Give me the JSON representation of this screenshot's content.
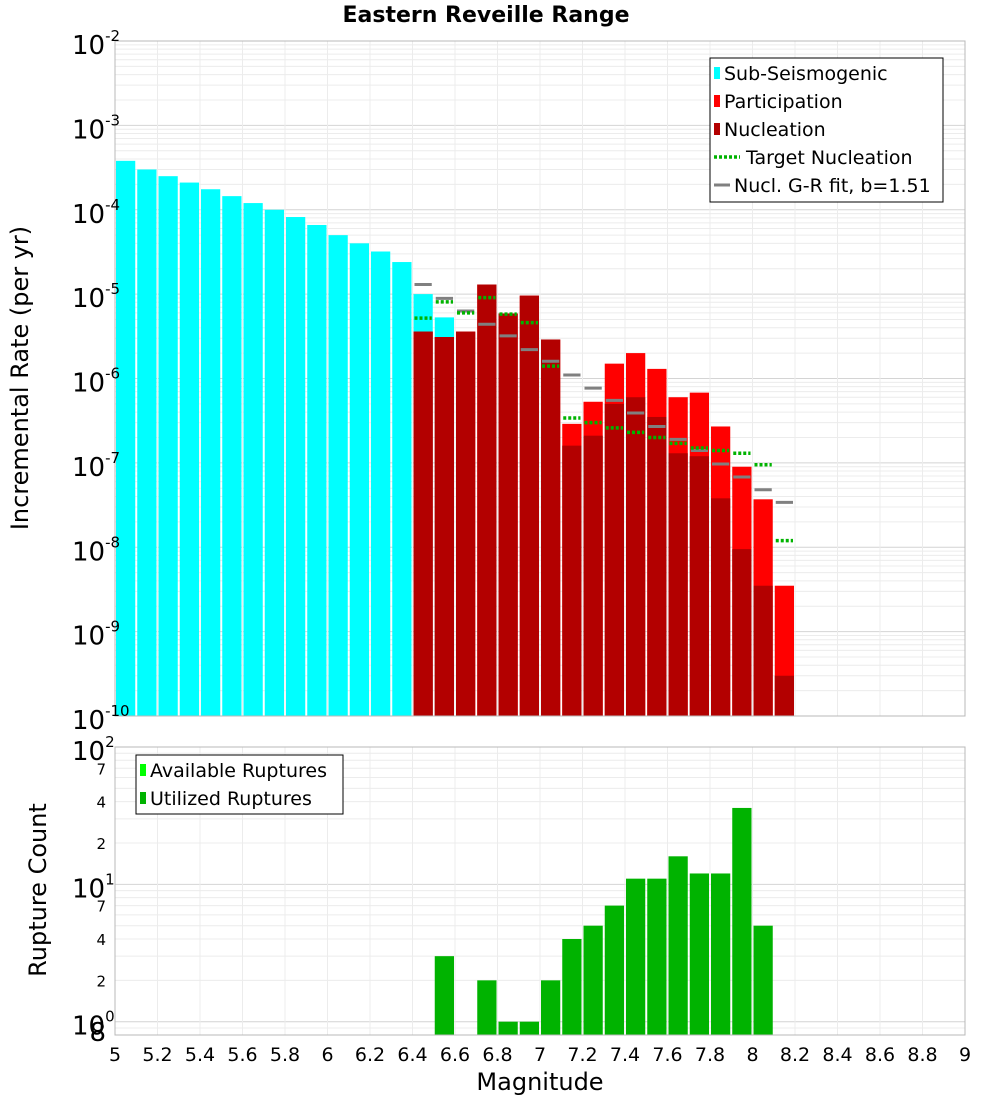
{
  "chart_data": [
    {
      "type": "bar",
      "title": "Eastern Reveille Range",
      "xlabel": "Magnitude",
      "ylabel": "Incremental Rate (per yr)",
      "xlim": [
        5,
        9
      ],
      "ylim": [
        1e-10,
        0.01
      ],
      "yscale": "log",
      "bin_width": 0.1,
      "y_ticks": [
        {
          "base": "10",
          "exp": "-2"
        },
        {
          "base": "10",
          "exp": "-3"
        },
        {
          "base": "10",
          "exp": "-4"
        },
        {
          "base": "10",
          "exp": "-5"
        },
        {
          "base": "10",
          "exp": "-6"
        },
        {
          "base": "10",
          "exp": "-7"
        },
        {
          "base": "10",
          "exp": "-8"
        },
        {
          "base": "10",
          "exp": "-9"
        },
        {
          "base": "10",
          "exp": "-10"
        }
      ],
      "legend": [
        {
          "label": "Sub-Seismogenic",
          "color": "#00ffff",
          "kind": "bar"
        },
        {
          "label": "Participation",
          "color": "#ff0000",
          "kind": "bar"
        },
        {
          "label": "Nucleation",
          "color": "#b30000",
          "kind": "bar"
        },
        {
          "label": "Target Nucleation",
          "color": "#00b300",
          "kind": "dotted"
        },
        {
          "label": "Nucl. G-R fit, b=1.51",
          "color": "#808080",
          "kind": "line"
        }
      ],
      "series": [
        {
          "name": "Sub-Seismogenic",
          "color": "#00ffff",
          "x": [
            5.05,
            5.15,
            5.25,
            5.35,
            5.45,
            5.55,
            5.65,
            5.75,
            5.85,
            5.95,
            6.05,
            6.15,
            6.25,
            6.35,
            6.45,
            6.55
          ],
          "values": [
            0.00038,
            0.0003,
            0.00025,
            0.00021,
            0.000175,
            0.000145,
            0.00012,
            0.0001,
            8.2e-05,
            6.6e-05,
            5e-05,
            4e-05,
            3.2e-05,
            2.4e-05,
            1e-05,
            5.3e-06
          ]
        },
        {
          "name": "Participation",
          "color": "#ff0000",
          "x": [
            6.45,
            6.55,
            6.65,
            6.75,
            6.85,
            6.95,
            7.05,
            7.15,
            7.25,
            7.35,
            7.45,
            7.55,
            7.65,
            7.75,
            7.85,
            7.95,
            8.05,
            8.15
          ],
          "values": [
            3.6e-06,
            3.1e-06,
            3.6e-06,
            1.3e-05,
            5.9e-06,
            9.6e-06,
            2.9e-06,
            2.9e-07,
            5.3e-07,
            1.5e-06,
            2e-06,
            1.3e-06,
            6e-07,
            6.8e-07,
            2.7e-07,
            9e-08,
            3.7e-08,
            3.5e-09
          ]
        },
        {
          "name": "Nucleation",
          "color": "#b30000",
          "x": [
            6.45,
            6.55,
            6.65,
            6.75,
            6.85,
            6.95,
            7.05,
            7.15,
            7.25,
            7.35,
            7.45,
            7.55,
            7.65,
            7.75,
            7.85,
            7.95,
            8.05,
            8.15
          ],
          "values": [
            3.6e-06,
            3.1e-06,
            3.6e-06,
            1.3e-05,
            5.9e-06,
            9.6e-06,
            2.9e-06,
            1.6e-07,
            2.1e-07,
            5e-07,
            6e-07,
            3.5e-07,
            1.3e-07,
            1.2e-07,
            3.8e-08,
            9.5e-09,
            3.5e-09,
            3e-10
          ]
        },
        {
          "name": "Target Nucleation",
          "color": "#00b300",
          "style": "dotted",
          "x": [
            6.45,
            6.55,
            6.65,
            6.75,
            6.85,
            6.95,
            7.05,
            7.15,
            7.25,
            7.35,
            7.45,
            7.55,
            7.65,
            7.75,
            7.85,
            7.95,
            8.05,
            8.15
          ],
          "values": [
            5.2e-06,
            8.1e-06,
            6e-06,
            9.1e-06,
            5.8e-06,
            4.6e-06,
            1.4e-06,
            3.4e-07,
            3e-07,
            2.6e-07,
            2.3e-07,
            2e-07,
            1.7e-07,
            1.5e-07,
            1.4e-07,
            1.3e-07,
            9.5e-08,
            1.2e-08
          ]
        },
        {
          "name": "Nucl. G-R fit, b=1.51",
          "color": "#808080",
          "style": "solid",
          "x": [
            6.45,
            6.55,
            6.65,
            6.75,
            6.85,
            6.95,
            7.05,
            7.15,
            7.25,
            7.35,
            7.45,
            7.55,
            7.65,
            7.75,
            7.85,
            7.95,
            8.05,
            8.15
          ],
          "values": [
            1.3e-05,
            8.9e-06,
            6.3e-06,
            4.4e-06,
            3.2e-06,
            2.2e-06,
            1.6e-06,
            1.1e-06,
            7.7e-07,
            5.5e-07,
            3.9e-07,
            2.7e-07,
            1.9e-07,
            1.4e-07,
            9.7e-08,
            6.8e-08,
            4.8e-08,
            3.4e-08
          ]
        }
      ]
    },
    {
      "type": "bar",
      "xlabel": "Magnitude",
      "ylabel": "Rupture Count",
      "xlim": [
        5,
        9
      ],
      "ylim": [
        0.8,
        100
      ],
      "yscale": "log",
      "x_ticks": [
        "5",
        "5.2",
        "5.4",
        "5.6",
        "5.8",
        "6",
        "6.2",
        "6.4",
        "6.6",
        "6.8",
        "7",
        "7.2",
        "7.4",
        "7.6",
        "7.8",
        "8",
        "8.2",
        "8.4",
        "8.6",
        "8.8",
        "9"
      ],
      "y_major_ticks": [
        {
          "base": "10",
          "exp": "2",
          "value": 100
        },
        {
          "base": "10",
          "exp": "1",
          "value": 10
        },
        {
          "base": "10",
          "exp": "0",
          "value": 1
        }
      ],
      "y_minor_labels": [
        {
          "label": "7",
          "value": 70
        },
        {
          "label": "4",
          "value": 40
        },
        {
          "label": "2",
          "value": 20
        },
        {
          "label": "7",
          "value": 7
        },
        {
          "label": "4",
          "value": 4
        },
        {
          "label": "2",
          "value": 2
        },
        {
          "label": "8",
          "value": 0.8
        }
      ],
      "legend": [
        {
          "label": "Available Ruptures",
          "color": "#00ff00"
        },
        {
          "label": "Utilized Ruptures",
          "color": "#00b300"
        }
      ],
      "series": [
        {
          "name": "Utilized Ruptures",
          "color": "#00b300",
          "x": [
            6.55,
            6.75,
            6.85,
            6.95,
            7.05,
            7.15,
            7.25,
            7.35,
            7.45,
            7.55,
            7.65,
            7.75,
            7.85,
            7.95,
            8.05
          ],
          "values": [
            3,
            2,
            1,
            1,
            2,
            4,
            5,
            7,
            11,
            11,
            16,
            12,
            12,
            36,
            5
          ]
        }
      ]
    }
  ]
}
